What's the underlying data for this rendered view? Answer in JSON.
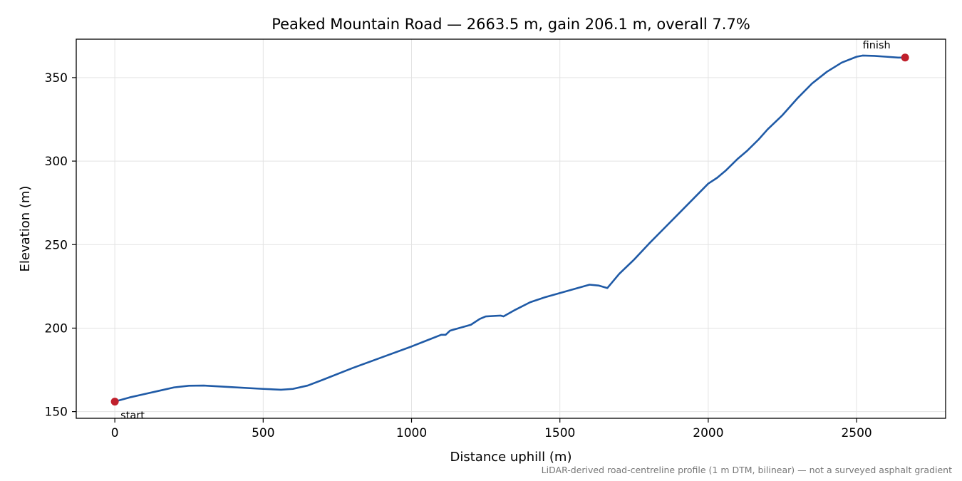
{
  "chart_data": {
    "type": "line",
    "title": "Peaked Mountain Road — 2663.5 m, gain 206.1 m, overall 7.7%",
    "xlabel": "Distance uphill (m)",
    "ylabel": "Elevation (m)",
    "xlim": [
      -130,
      2800
    ],
    "ylim": [
      146,
      373
    ],
    "xticks": [
      0,
      500,
      1000,
      1500,
      2000,
      2500
    ],
    "yticks": [
      150,
      200,
      250,
      300,
      350
    ],
    "grid": true,
    "footnote": "LiDAR-derived road-centreline profile (1 m DTM, bilinear) — not a surveyed asphalt gradient",
    "series": [
      {
        "color": "#1f5aa6",
        "x": [
          0,
          50,
          100,
          150,
          200,
          250,
          300,
          400,
          500,
          560,
          600,
          650,
          700,
          800,
          900,
          1000,
          1050,
          1100,
          1115,
          1130,
          1150,
          1200,
          1230,
          1250,
          1300,
          1310,
          1350,
          1400,
          1450,
          1500,
          1550,
          1600,
          1630,
          1660,
          1700,
          1750,
          1800,
          1850,
          1900,
          1950,
          2000,
          2030,
          2060,
          2100,
          2130,
          2170,
          2200,
          2250,
          2300,
          2350,
          2400,
          2450,
          2500,
          2520,
          2560,
          2600,
          2640,
          2663.5
        ],
        "y": [
          156,
          158.5,
          160.5,
          162.5,
          164.5,
          165.5,
          165.6,
          164.6,
          163.6,
          163.1,
          163.6,
          165.6,
          169,
          176,
          182.5,
          189,
          192.5,
          196,
          196,
          198.5,
          199.5,
          202,
          205.5,
          207,
          207.5,
          207,
          211,
          215.5,
          218.5,
          221,
          223.5,
          226,
          225.5,
          224,
          232.5,
          241,
          250.5,
          259.5,
          268.5,
          277.5,
          286.5,
          290,
          294.5,
          301.5,
          306,
          313,
          319,
          327.5,
          337.5,
          346.5,
          353.5,
          359,
          362.5,
          363.2,
          363,
          362.5,
          362,
          362
        ]
      }
    ],
    "annotations": [
      {
        "label": "start",
        "x": 0,
        "y": 156,
        "color": "#c0202c"
      },
      {
        "label": "finish",
        "x": 2663.5,
        "y": 362,
        "color": "#c0202c"
      }
    ]
  }
}
